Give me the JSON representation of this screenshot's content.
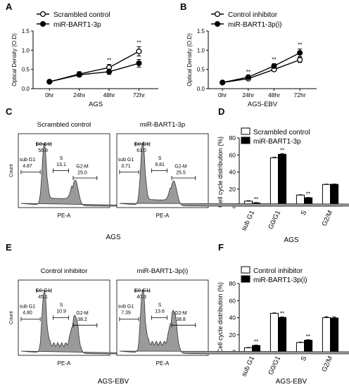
{
  "chart_data": [
    {
      "panel": "A",
      "type": "line",
      "xlabel": "AGS",
      "ylabel": "Optical Density (O.D)",
      "categories": [
        "0hr",
        "24hr",
        "48hr",
        "72hr"
      ],
      "ylim": [
        0,
        1.5
      ],
      "yticks": [
        "0.0",
        "0.5",
        "1.0",
        "1.5"
      ],
      "series": [
        {
          "name": "Scrambled control",
          "marker": "open-circle",
          "values": [
            0.18,
            0.38,
            0.55,
            0.97
          ],
          "errors": [
            0.02,
            0.06,
            0.08,
            0.12
          ]
        },
        {
          "name": "miR-BART1-3p",
          "marker": "filled-circle",
          "values": [
            0.18,
            0.36,
            0.44,
            0.66
          ],
          "errors": [
            0.02,
            0.05,
            0.07,
            0.1
          ]
        }
      ],
      "annotations": [
        {
          "x": "48hr",
          "text": "**"
        },
        {
          "x": "72hr",
          "text": "**"
        }
      ]
    },
    {
      "panel": "B",
      "type": "line",
      "xlabel": "AGS-EBV",
      "ylabel": "Optical Density (O.D)",
      "categories": [
        "0hr",
        "24hr",
        "48hr",
        "72hr"
      ],
      "ylim": [
        0,
        1.5
      ],
      "yticks": [
        "0.0",
        "0.5",
        "1.0",
        "1.5"
      ],
      "series": [
        {
          "name": "Control inhibitor",
          "marker": "open-circle",
          "values": [
            0.16,
            0.26,
            0.5,
            0.75
          ],
          "errors": [
            0.03,
            0.03,
            0.05,
            0.07
          ]
        },
        {
          "name": "miR-BART1-3p(i)",
          "marker": "filled-circle",
          "values": [
            0.16,
            0.3,
            0.59,
            0.93
          ],
          "errors": [
            0.03,
            0.03,
            0.06,
            0.1
          ]
        }
      ],
      "annotations": [
        {
          "x": "24hr",
          "text": "**"
        },
        {
          "x": "48hr",
          "text": "**"
        },
        {
          "x": "72hr",
          "text": "**"
        }
      ]
    },
    {
      "panel": "C",
      "type": "area",
      "group_label": "AGS",
      "histograms": [
        {
          "title": "Scrambled control",
          "xlabel": "PE-A",
          "ylabel": "Count",
          "gates": [
            {
              "name": "sub G1",
              "value": "4.87"
            },
            {
              "name": "G0-G1",
              "value": "56.9"
            },
            {
              "name": "S",
              "value": "13.1"
            },
            {
              "name": "G2-M",
              "value": "25.0"
            }
          ]
        },
        {
          "title": "miR-BART1-3p",
          "xlabel": "PE-A",
          "ylabel": "",
          "gates": [
            {
              "name": "sub G1",
              "value": "3.71"
            },
            {
              "name": "G0-G1",
              "value": "61.0"
            },
            {
              "name": "S",
              "value": "9.81"
            },
            {
              "name": "G2-M",
              "value": "25.5"
            }
          ]
        }
      ]
    },
    {
      "panel": "D",
      "type": "bar",
      "xlabel": "AGS",
      "ylabel": "Cell cycle distribution (%)",
      "categories": [
        "sub G1",
        "G0/G1",
        "S",
        "G2/M"
      ],
      "ylim": [
        0,
        80
      ],
      "yticks": [
        "0",
        "20",
        "40",
        "60",
        "80"
      ],
      "series": [
        {
          "name": "Scrambled control",
          "fill": "#ffffff",
          "values": [
            5.9,
            56.8,
            13.0,
            25.4
          ],
          "errors": [
            0.5,
            0.6,
            0.4,
            0.4
          ]
        },
        {
          "name": "miR-BART1-3p",
          "fill": "#000000",
          "values": [
            3.8,
            60.8,
            9.8,
            25.6
          ],
          "errors": [
            0.4,
            0.8,
            0.4,
            0.4
          ]
        }
      ],
      "annotations": [
        {
          "x": "sub G1",
          "text": "**"
        },
        {
          "x": "G0/G1",
          "text": "**"
        },
        {
          "x": "S",
          "text": "**"
        }
      ]
    },
    {
      "panel": "E",
      "type": "area",
      "group_label": "AGS-EBV",
      "histograms": [
        {
          "title": "Control inhibitor",
          "xlabel": "PE-A",
          "ylabel": "Count",
          "gates": [
            {
              "name": "sub G1",
              "value": "4.80"
            },
            {
              "name": "G0-G1",
              "value": "45.1"
            },
            {
              "name": "S",
              "value": "10.9"
            },
            {
              "name": "G2-M",
              "value": "38.2"
            }
          ]
        },
        {
          "title": "miR-BART1-3p(i)",
          "xlabel": "PE-A",
          "ylabel": "",
          "gates": [
            {
              "name": "sub G1",
              "value": "7.39"
            },
            {
              "name": "G0-G1",
              "value": "40.3"
            },
            {
              "name": "S",
              "value": "13.6"
            },
            {
              "name": "G2-M",
              "value": "38.8"
            }
          ]
        }
      ]
    },
    {
      "panel": "F",
      "type": "bar",
      "xlabel": "AGS-EBV",
      "ylabel": "Cell cycle distribution (%)",
      "categories": [
        "sub G1",
        "G0/G1",
        "S",
        "G2/M"
      ],
      "ylim": [
        0,
        80
      ],
      "yticks": [
        "0",
        "20",
        "40",
        "60",
        "80"
      ],
      "series": [
        {
          "name": "Control inhibitor",
          "fill": "#ffffff",
          "values": [
            4.8,
            45.1,
            10.9,
            40.0
          ],
          "errors": [
            0.4,
            0.5,
            0.5,
            1.2
          ]
        },
        {
          "name": "miR-BART1-3p(i)",
          "fill": "#000000",
          "values": [
            7.4,
            40.3,
            13.6,
            39.6
          ],
          "errors": [
            0.5,
            0.6,
            0.6,
            1.2
          ]
        }
      ],
      "annotations": [
        {
          "x": "sub G1",
          "text": "**"
        },
        {
          "x": "G0/G1",
          "text": "**"
        },
        {
          "x": "S",
          "text": "**"
        }
      ]
    }
  ]
}
